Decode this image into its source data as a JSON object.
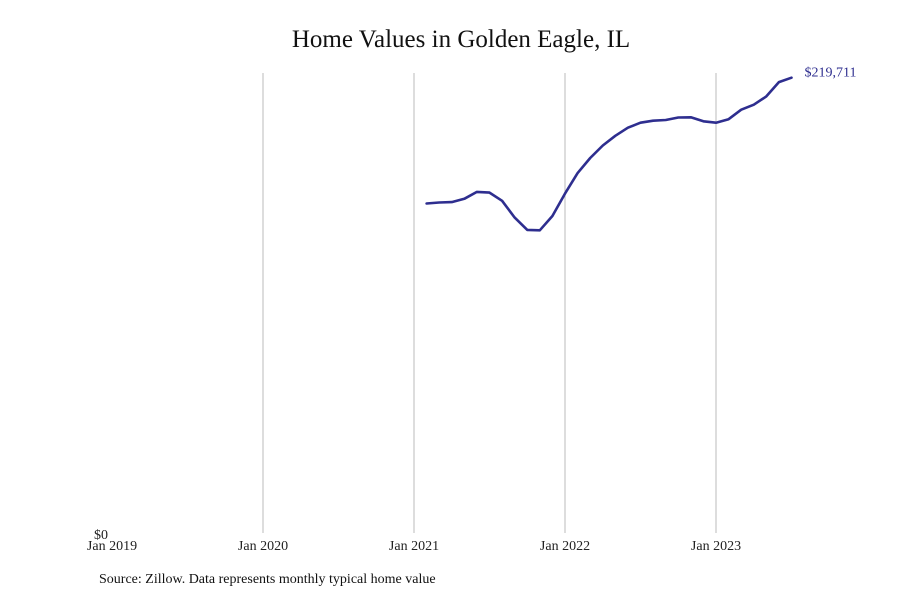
{
  "chart_data": {
    "type": "line",
    "title": "Home Values in Golden Eagle, IL",
    "xlabel": "",
    "ylabel": "",
    "x_ticks": [
      "Jan 2019",
      "Jan 2020",
      "Jan 2021",
      "Jan 2022",
      "Jan 2023"
    ],
    "y_ticks": [
      "$0"
    ],
    "xlim": [
      "2019-01",
      "2023-09"
    ],
    "ylim": [
      0,
      222000
    ],
    "grid": "vertical",
    "line_color": "#2e2e8f",
    "grid_color": "#bbbbbb",
    "end_label": "$219,711",
    "series": [
      {
        "x": [
          "2021-02",
          "2021-03",
          "2021-04",
          "2021-05",
          "2021-06",
          "2021-07",
          "2021-08",
          "2021-09",
          "2021-10",
          "2021-11",
          "2021-12",
          "2022-01",
          "2022-02",
          "2022-03",
          "2022-04",
          "2022-05",
          "2022-06",
          "2022-07",
          "2022-08",
          "2022-09",
          "2022-10",
          "2022-11",
          "2022-12",
          "2023-01",
          "2023-02",
          "2023-03",
          "2023-04",
          "2023-05",
          "2023-06",
          "2023-07"
        ],
        "values": [
          159000,
          159500,
          159700,
          161300,
          164600,
          164300,
          160300,
          152200,
          146300,
          146100,
          153000,
          163800,
          173700,
          181000,
          187000,
          191700,
          195600,
          198000,
          199000,
          199300,
          200500,
          200600,
          198700,
          198000,
          199700,
          204300,
          206700,
          210700,
          217600,
          219711
        ]
      }
    ]
  },
  "source": "Source: Zillow. Data represents monthly typical home value"
}
